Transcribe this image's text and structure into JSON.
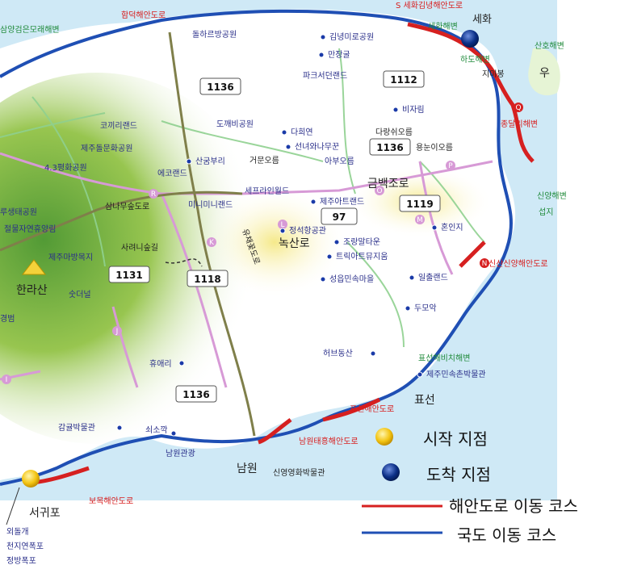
{
  "colors": {
    "sea": "#cfe9f6",
    "land": "#ffffff",
    "forest": "#8cbf3c",
    "coastal_road": "#d62020",
    "national_road": "#1f4fb4",
    "start_marker": "#f3c412",
    "end_marker": "#0b2f86"
  },
  "map": {
    "top_labels": {
      "hamdeok_coast_road": "함덕해안도로",
      "sehwa_coast_road": "S 세화김녕해안도로",
      "samyang_beach": "삼양검은모래해변",
      "sehwa_beach": "세화해변"
    },
    "place_names": {
      "sehwa": "세화",
      "jimibong": "지미봉",
      "pyoseon": "표선",
      "namwon": "남원",
      "seogwipo": "서귀포",
      "hallasan": "한라산",
      "nokcheonro": "녹산로",
      "geumbaekjoro": "금백조로",
      "u": "우"
    },
    "road_names_vertical": {
      "yuchae_kkotdoro": "유채꽃도로"
    },
    "attractions": [
      "돌하르방공원",
      "김녕미로공원",
      "만장굴",
      "파크서던랜드",
      "비자림",
      "도깨비공원",
      "다희연",
      "선녀와나무꾼",
      "다랑쉬오름",
      "용눈이오름",
      "코끼리랜드",
      "제주돌문화공원",
      "4.3평화공원",
      "산굼부리",
      "거문오름",
      "에코랜드",
      "아부오름",
      "세프라인월드",
      "미니미니랜드",
      "제주아트랜드",
      "루생태공원",
      "절물자연휴양림",
      "삼나무숲도로",
      "정석항공관",
      "조랑말타운",
      "트릭아트뮤지움",
      "제주마방목지",
      "사려니숲길",
      "성읍민속마을",
      "혼인지",
      "일출랜드",
      "두모악",
      "숫더널",
      "휴애리",
      "허브동산",
      "감귤박물관",
      "쇠소깍",
      "남원관광",
      "신영영화박물관",
      "외돌개",
      "천지연폭포",
      "정방폭포",
      "하도해변",
      "산호해변",
      "종달리해변",
      "신양해변",
      "섭지",
      "표선해비치해변",
      "제주민속촌박물관",
      "신산신양해안도로",
      "표선해안도로",
      "남원태흥해안도로",
      "보목해안도로",
      "경범"
    ],
    "route_numbers": [
      "1136",
      "1112",
      "1136",
      "97",
      "1119",
      "1131",
      "1118",
      "1136"
    ],
    "route_letters": [
      "R",
      "K",
      "L",
      "P",
      "Q",
      "O",
      "M",
      "N",
      "J",
      "I"
    ]
  },
  "legend": {
    "start": "시작 지점",
    "end": "도착 지점",
    "coastal": "해안도로 이동 코스",
    "national": "국도 이동 코스"
  }
}
